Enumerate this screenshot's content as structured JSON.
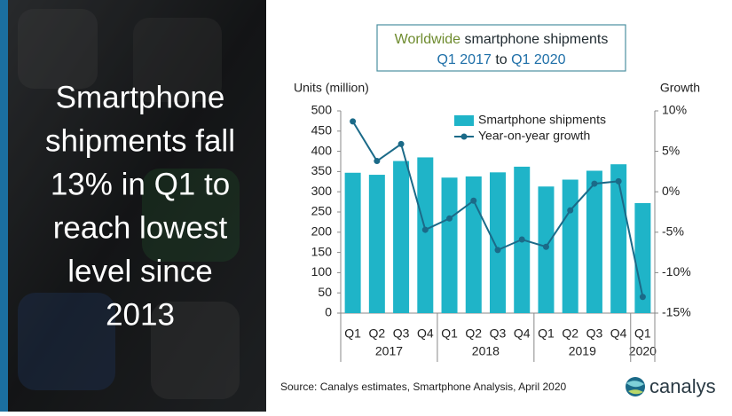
{
  "headline": [
    "Smartphone",
    "shipments fall",
    "13% in Q1 to",
    "reach lowest",
    "level since",
    "2013"
  ],
  "logo": "canalys",
  "chart_data": {
    "type": "bar",
    "title_lines": [
      [
        {
          "text": "Worldwide",
          "color": "#6e8b2e"
        },
        {
          "text": " smartphone shipments",
          "color": "#1f2a30"
        }
      ],
      [
        {
          "text": "Q1 2017",
          "color": "#1e6fa8"
        },
        {
          "text": " to ",
          "color": "#1f2a30"
        },
        {
          "text": "Q1 2020",
          "color": "#1e6fa8"
        }
      ]
    ],
    "ylabel": "Units (million)",
    "y2label": "Growth",
    "categories": [
      "Q1",
      "Q2",
      "Q3",
      "Q4",
      "Q1",
      "Q2",
      "Q3",
      "Q4",
      "Q1",
      "Q2",
      "Q3",
      "Q4",
      "Q1"
    ],
    "year_labels": [
      "2017",
      "2018",
      "2019",
      "2020"
    ],
    "series": [
      {
        "name": "Smartphone shipments",
        "type": "bar",
        "color": "#1fb4c8",
        "values": [
          347,
          342,
          376,
          385,
          335,
          338,
          348,
          362,
          313,
          330,
          352,
          368,
          272
        ]
      },
      {
        "name": "Year-on-year growth",
        "type": "line",
        "axis": "y2",
        "color": "#1b6a88",
        "values": [
          8.7,
          3.8,
          5.9,
          -4.7,
          -3.3,
          -1.1,
          -7.2,
          -5.9,
          -6.8,
          -2.3,
          1.0,
          1.3,
          -13.0
        ]
      }
    ],
    "ylim": [
      0,
      500
    ],
    "yticks": [
      0,
      50,
      100,
      150,
      200,
      250,
      300,
      350,
      400,
      450,
      500
    ],
    "y2lim": [
      -15,
      10
    ],
    "y2ticks": [
      {
        "value": -15,
        "label": "-15%"
      },
      {
        "value": -10,
        "label": "-10%"
      },
      {
        "value": -5,
        "label": "-5%"
      },
      {
        "value": 0,
        "label": "0%"
      },
      {
        "value": 5,
        "label": "5%"
      },
      {
        "value": 10,
        "label": "10%"
      }
    ],
    "legend": "top",
    "source": "Source: Canalys estimates, Smartphone Analysis, April 2020"
  }
}
